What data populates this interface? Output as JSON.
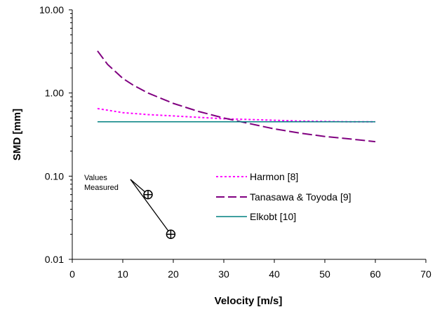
{
  "chart_data": {
    "type": "line",
    "title": "",
    "xlabel": "Velocity [m/s]",
    "ylabel": "SMD [mm]",
    "xlim": [
      0,
      70
    ],
    "ylim": [
      0.01,
      10
    ],
    "yscale": "log",
    "grid": false,
    "legend_position": "lower-center",
    "x_ticks": [
      "0",
      "10",
      "20",
      "30",
      "40",
      "50",
      "60",
      "70"
    ],
    "y_ticks": [
      "0.01",
      "0.10",
      "1.00",
      "10.00"
    ],
    "series": [
      {
        "name": "Harmon [8]",
        "color": "#ff00ff",
        "style": "dotted",
        "x": [
          5,
          10,
          15,
          20,
          25,
          30,
          35,
          40,
          45,
          50,
          55,
          60
        ],
        "y": [
          0.65,
          0.58,
          0.55,
          0.53,
          0.51,
          0.49,
          0.48,
          0.47,
          0.46,
          0.455,
          0.45,
          0.45
        ]
      },
      {
        "name": "Tanasawa & Toyoda [9]",
        "color": "#800080",
        "style": "dashed",
        "x": [
          5,
          7,
          10,
          12,
          15,
          20,
          25,
          30,
          35,
          40,
          45,
          50,
          55,
          60
        ],
        "y": [
          3.2,
          2.2,
          1.5,
          1.25,
          1.0,
          0.75,
          0.6,
          0.5,
          0.43,
          0.37,
          0.33,
          0.3,
          0.28,
          0.26
        ]
      },
      {
        "name": "Elkobt [10]",
        "color": "#008080",
        "style": "solid",
        "x": [
          5,
          60
        ],
        "y": [
          0.45,
          0.45
        ]
      }
    ],
    "measured_points": {
      "x": [
        15,
        19.5
      ],
      "y": [
        0.06,
        0.02
      ]
    },
    "annotation": {
      "lines": [
        "Values",
        "Measured"
      ]
    }
  }
}
